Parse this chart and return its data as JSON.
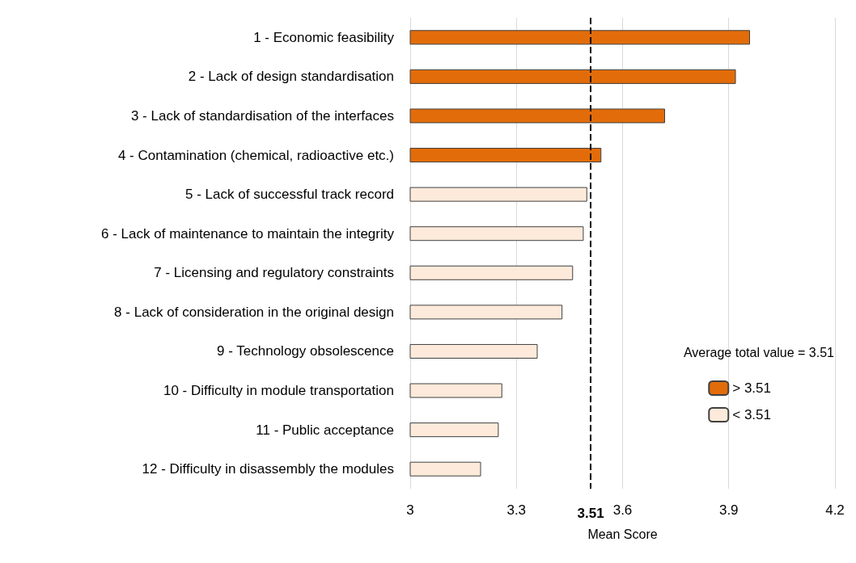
{
  "chart_data": {
    "type": "bar",
    "orientation": "horizontal",
    "xlabel": "Mean Score",
    "legend_title": "Average total value = 3.51",
    "categories": [
      "1 - Economic feasibility",
      "2 - Lack of design standardisation",
      "3 - Lack of standardisation of the interfaces",
      "4 - Contamination (chemical, radioactive etc.)",
      "5 - Lack of successful track record",
      "6 - Lack of maintenance to maintain the integrity",
      "7 - Licensing and regulatory constraints",
      "8 - Lack of consideration in the original design",
      "9 - Technology obsolescence",
      "10 - Difficulty in module transportation",
      "11 - Public acceptance",
      "12 - Difficulty in disassembly the modules"
    ],
    "series": [
      {
        "name": "> 3.51",
        "color": "#e36c0a",
        "values": [
          3.96,
          3.92,
          3.72,
          3.54,
          null,
          null,
          null,
          null,
          null,
          null,
          null,
          null
        ]
      },
      {
        "name": "< 3.51",
        "color": "#fdeada",
        "values": [
          null,
          null,
          null,
          null,
          3.5,
          3.49,
          3.46,
          3.43,
          3.36,
          3.26,
          3.25,
          3.2
        ]
      }
    ],
    "xlim": [
      3,
      4.2
    ],
    "xticks": [
      3,
      3.3,
      3.6,
      3.9,
      4.2
    ],
    "ref_lines": [
      {
        "axis": "x",
        "value": 3.51,
        "label": "3.51",
        "line_style": "dashed",
        "color": "#000000"
      }
    ],
    "grid": "x",
    "legend": "right"
  }
}
